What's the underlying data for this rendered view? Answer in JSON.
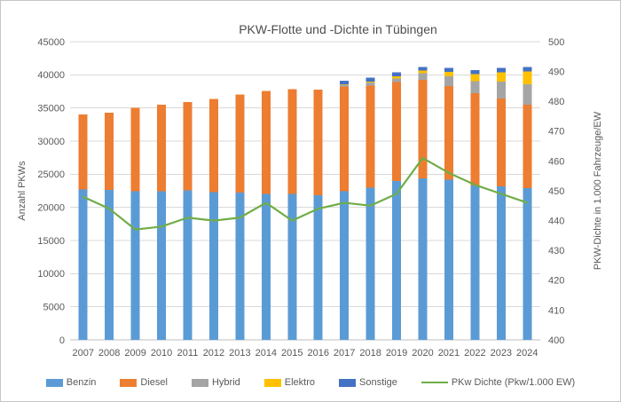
{
  "chart_data": {
    "type": "bar",
    "subtype": "stacked-bars-with-line-overlay",
    "title": "PKW-Flotte und -Dichte in Tübingen",
    "categories": [
      "2007",
      "2008",
      "2009",
      "2010",
      "2011",
      "2012",
      "2013",
      "2014",
      "2015",
      "2016",
      "2017",
      "2018",
      "2019",
      "2020",
      "2021",
      "2022",
      "2023",
      "2024"
    ],
    "series": [
      {
        "name": "Benzin",
        "color": "#5b9bd5",
        "axis": "left",
        "values": [
          22700,
          22650,
          22400,
          22400,
          22550,
          22300,
          22200,
          22000,
          22050,
          21800,
          22400,
          23000,
          24000,
          24400,
          24200,
          23300,
          23200,
          22900
        ]
      },
      {
        "name": "Diesel",
        "color": "#ed7d31",
        "axis": "left",
        "values": [
          11350,
          11650,
          12600,
          13100,
          13350,
          14050,
          14800,
          15600,
          15800,
          16000,
          15850,
          15400,
          14900,
          14850,
          14100,
          13950,
          13200,
          12600
        ]
      },
      {
        "name": "Hybrid",
        "color": "#a5a5a5",
        "axis": "left",
        "values": [
          0,
          0,
          0,
          0,
          0,
          0,
          0,
          0,
          0,
          0,
          250,
          450,
          550,
          1000,
          1450,
          1800,
          2600,
          3100
        ]
      },
      {
        "name": "Elektro",
        "color": "#ffc000",
        "axis": "left",
        "values": [
          0,
          0,
          0,
          0,
          0,
          0,
          0,
          0,
          0,
          0,
          100,
          150,
          350,
          400,
          700,
          1050,
          1400,
          1900
        ]
      },
      {
        "name": "Sonstige",
        "color": "#4472c4",
        "axis": "left",
        "values": [
          0,
          0,
          0,
          0,
          0,
          0,
          0,
          0,
          0,
          0,
          500,
          550,
          600,
          550,
          600,
          600,
          650,
          650
        ]
      }
    ],
    "line_series": {
      "name": "PKw Dichte (Pkw/1.000 EW)",
      "color": "#70ad47",
      "axis": "right",
      "values": [
        448,
        444,
        437,
        438,
        441,
        440,
        441,
        446,
        440,
        444,
        446,
        445,
        449,
        461,
        456,
        452,
        449,
        446
      ]
    },
    "left_axis": {
      "label": "Anzahl PKWs",
      "min": 0,
      "max": 45000,
      "step": 5000,
      "ticks": [
        0,
        5000,
        10000,
        15000,
        20000,
        25000,
        30000,
        35000,
        40000,
        45000
      ]
    },
    "right_axis": {
      "label": "PKW-Dichte in 1.000 Fahrzeuge/EW",
      "min": 400,
      "max": 500,
      "step": 10,
      "ticks": [
        400,
        410,
        420,
        430,
        440,
        450,
        460,
        470,
        480,
        490,
        500
      ]
    },
    "grid": true,
    "legend_position": "bottom",
    "colors": {
      "gridline": "#d9d9d9",
      "axis_line": "#bfbfbf",
      "text": "#595959"
    }
  }
}
